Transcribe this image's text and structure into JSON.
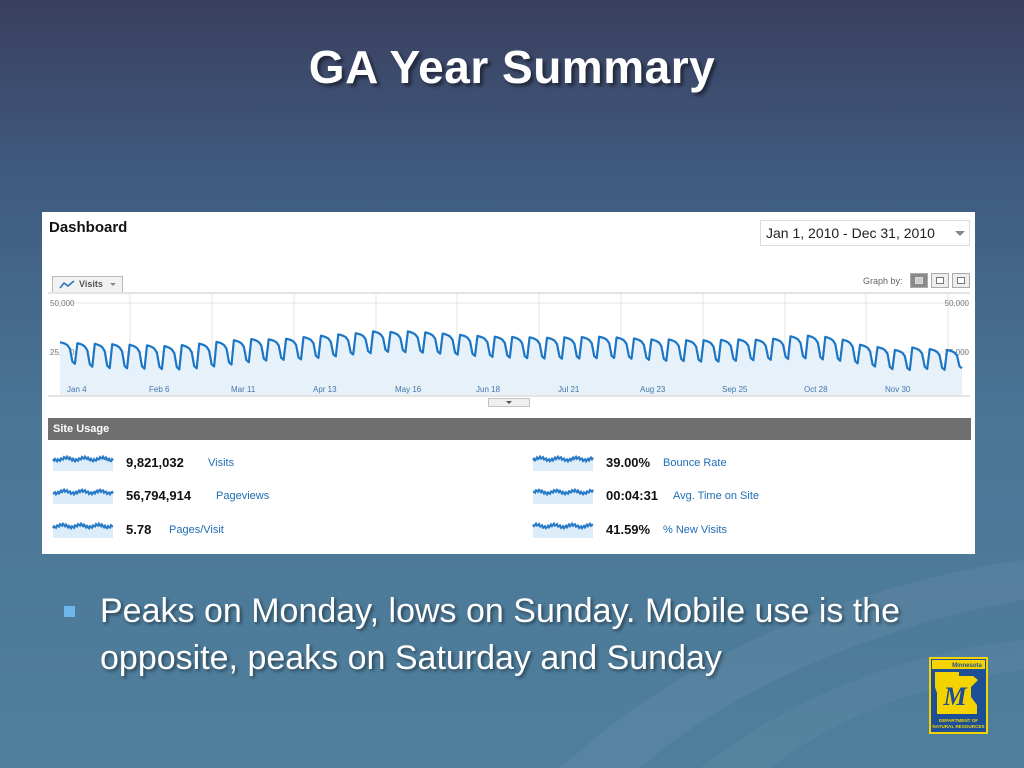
{
  "slide": {
    "title": "GA Year Summary",
    "bullet": "Peaks on Monday, lows on Sunday. Mobile use is the opposite, peaks on Saturday and Sunday"
  },
  "dashboard": {
    "title": "Dashboard",
    "date_range": "Jan 1, 2010 - Dec 31, 2010",
    "metric_selector": "Visits",
    "graph_by_label": "Graph by:"
  },
  "chart_data": {
    "type": "line",
    "title": "",
    "xlabel": "",
    "ylabel": "",
    "ylim": [
      0,
      50000
    ],
    "y_ticks": [
      "50,000",
      "25,000"
    ],
    "x_ticks": [
      "Jan 4",
      "Feb 6",
      "Mar 11",
      "Apr 13",
      "May 16",
      "Jun 18",
      "Jul 21",
      "Aug 23",
      "Sep 25",
      "Oct 28",
      "Nov 30"
    ],
    "grid": true,
    "series": [
      {
        "name": "Visits",
        "color": "#1b76c6",
        "weekly_peaks": [
          30000,
          29500,
          29200,
          29000,
          28700,
          28400,
          28000,
          28500,
          29300,
          30200,
          31000,
          31600,
          31500,
          31800,
          32600,
          33300,
          34000,
          34600,
          35500,
          35200,
          35500,
          35000,
          34400,
          33800,
          33200,
          32800,
          32700,
          32500,
          32300,
          32500,
          32600,
          32800,
          32400,
          31900,
          31400,
          31400,
          31000,
          31000,
          31200,
          31400,
          31300,
          31800,
          33000,
          33300,
          32700,
          31300,
          28700,
          27500,
          26000,
          27300,
          26500,
          26000
        ],
        "weekly_lows": [
          19000,
          17500,
          16800,
          16700,
          16500,
          16300,
          16100,
          16700,
          17600,
          18600,
          19800,
          20600,
          21000,
          21200,
          22000,
          22800,
          23700,
          24400,
          25100,
          24900,
          24700,
          24200,
          23600,
          23000,
          22500,
          22200,
          21900,
          21700,
          21600,
          21700,
          21900,
          22000,
          21600,
          21000,
          20500,
          20400,
          20100,
          20100,
          20500,
          20800,
          21000,
          21500,
          21800,
          21200,
          20500,
          19200,
          17600,
          16300,
          15800,
          16400,
          15900,
          16700
        ]
      }
    ]
  },
  "site_usage": {
    "title": "Site Usage",
    "metrics": [
      {
        "value": "9,821,032",
        "label": "Visits"
      },
      {
        "value": "56,794,914",
        "label": "Pageviews"
      },
      {
        "value": "5.78",
        "label": "Pages/Visit"
      },
      {
        "value": "39.00%",
        "label": "Bounce Rate"
      },
      {
        "value": "00:04:31",
        "label": "Avg. Time on Site"
      },
      {
        "value": "41.59%",
        "label": "% New Visits"
      }
    ],
    "sparkline_color": "#2b7cc8"
  },
  "logo": {
    "top_text": "Minnesota",
    "bottom_text_1": "DEPARTMENT OF",
    "bottom_text_2": "NATURAL RESOURCES"
  }
}
